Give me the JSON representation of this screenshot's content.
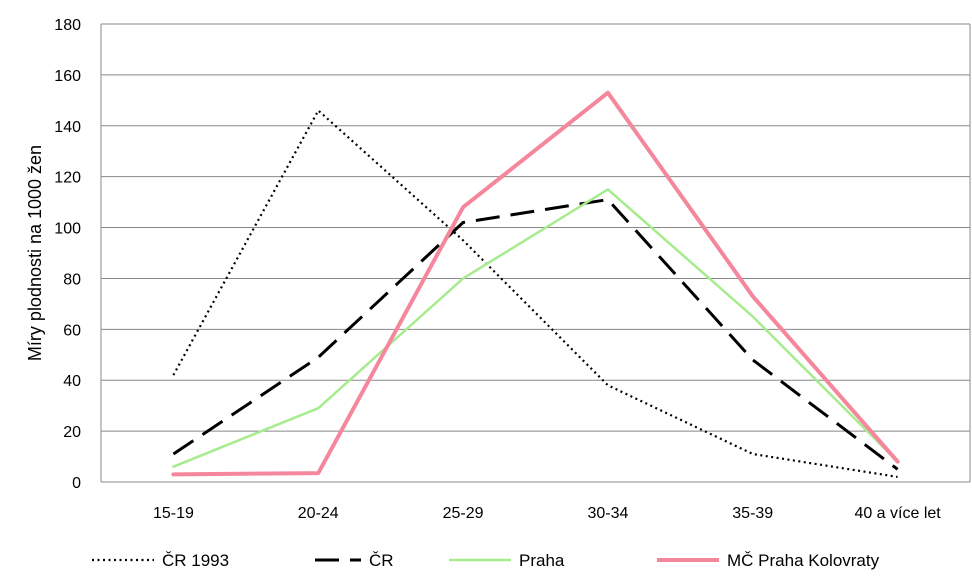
{
  "chart_data": {
    "type": "line",
    "title": "",
    "xlabel": "",
    "ylabel": "Míry plodnosti na 1000 žen",
    "ylim": [
      0,
      180
    ],
    "yticks": [
      0,
      20,
      40,
      60,
      80,
      100,
      120,
      140,
      160,
      180
    ],
    "categories": [
      "15-19",
      "20-24",
      "25-29",
      "30-34",
      "35-39",
      "40 a více let"
    ],
    "grid": true,
    "legend_position": "bottom",
    "series": [
      {
        "name": "ČR 1993",
        "values": [
          42,
          146,
          95,
          38,
          11,
          2
        ],
        "color": "#000000",
        "style": "dotted"
      },
      {
        "name": "ČR",
        "values": [
          11,
          49,
          102,
          111,
          48,
          5
        ],
        "color": "#000000",
        "style": "dashed"
      },
      {
        "name": "Praha",
        "values": [
          6,
          29,
          80,
          115,
          65,
          8
        ],
        "color": "#a6ec8e",
        "style": "solid"
      },
      {
        "name": "MČ Praha Kolovraty",
        "values": [
          3,
          3.5,
          108,
          153,
          73,
          8
        ],
        "color": "#f4879c",
        "style": "solid"
      }
    ]
  }
}
